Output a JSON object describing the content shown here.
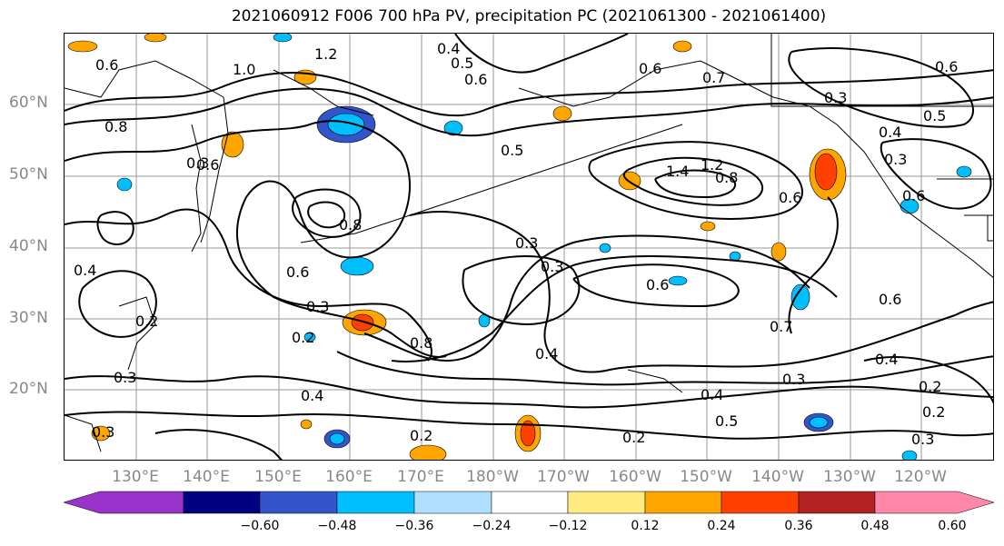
{
  "title": "2021060912 F006 700 hPa PV, precipitation PC (2021061300 - 2021061400)",
  "map": {
    "projection": "PlateCarree",
    "lat_labels": [
      "60°N",
      "50°N",
      "40°N",
      "30°N",
      "20°N"
    ],
    "lon_labels": [
      "130°E",
      "140°E",
      "150°E",
      "160°E",
      "170°E",
      "180°W",
      "170°W",
      "160°W",
      "150°W",
      "140°W",
      "130°W",
      "120°W"
    ],
    "contour_field": "700 hPa PV",
    "contour_color": "#000000",
    "contour_labels": [
      "0.6",
      "1.2",
      "1.0",
      "0.4",
      "0.5",
      "0.6",
      "0.6",
      "0.7",
      "0.6",
      "0.3",
      "0.5",
      "0.4",
      "0.8",
      "0.3",
      "0.5",
      "1.4",
      "1.2",
      "0.8",
      "0.8",
      "0.6",
      "0.6",
      "0.4",
      "0.3",
      "0.6",
      "0.6",
      "0.3",
      "0.3",
      "0.2",
      "0.2",
      "0.6",
      "0.7",
      "0.6",
      "0.4",
      "0.8",
      "0.3",
      "0.4",
      "0.3",
      "0.4",
      "0.5",
      "0.3",
      "0.4",
      "0.2",
      "0.2",
      "0.2",
      "0.3",
      "0.2",
      "0.3"
    ]
  },
  "colorbar": {
    "ticks": [
      "−0.60",
      "−0.48",
      "−0.36",
      "−0.24",
      "−0.12",
      "0.12",
      "0.24",
      "0.36",
      "0.48",
      "0.60"
    ],
    "colors": [
      "#9933cc",
      "#000080",
      "#3355cc",
      "#00bfff",
      "#b0e0ff",
      "#ffffff",
      "#ffeb80",
      "#ffa500",
      "#ff4000",
      "#b22222",
      "#ff88aa"
    ]
  }
}
